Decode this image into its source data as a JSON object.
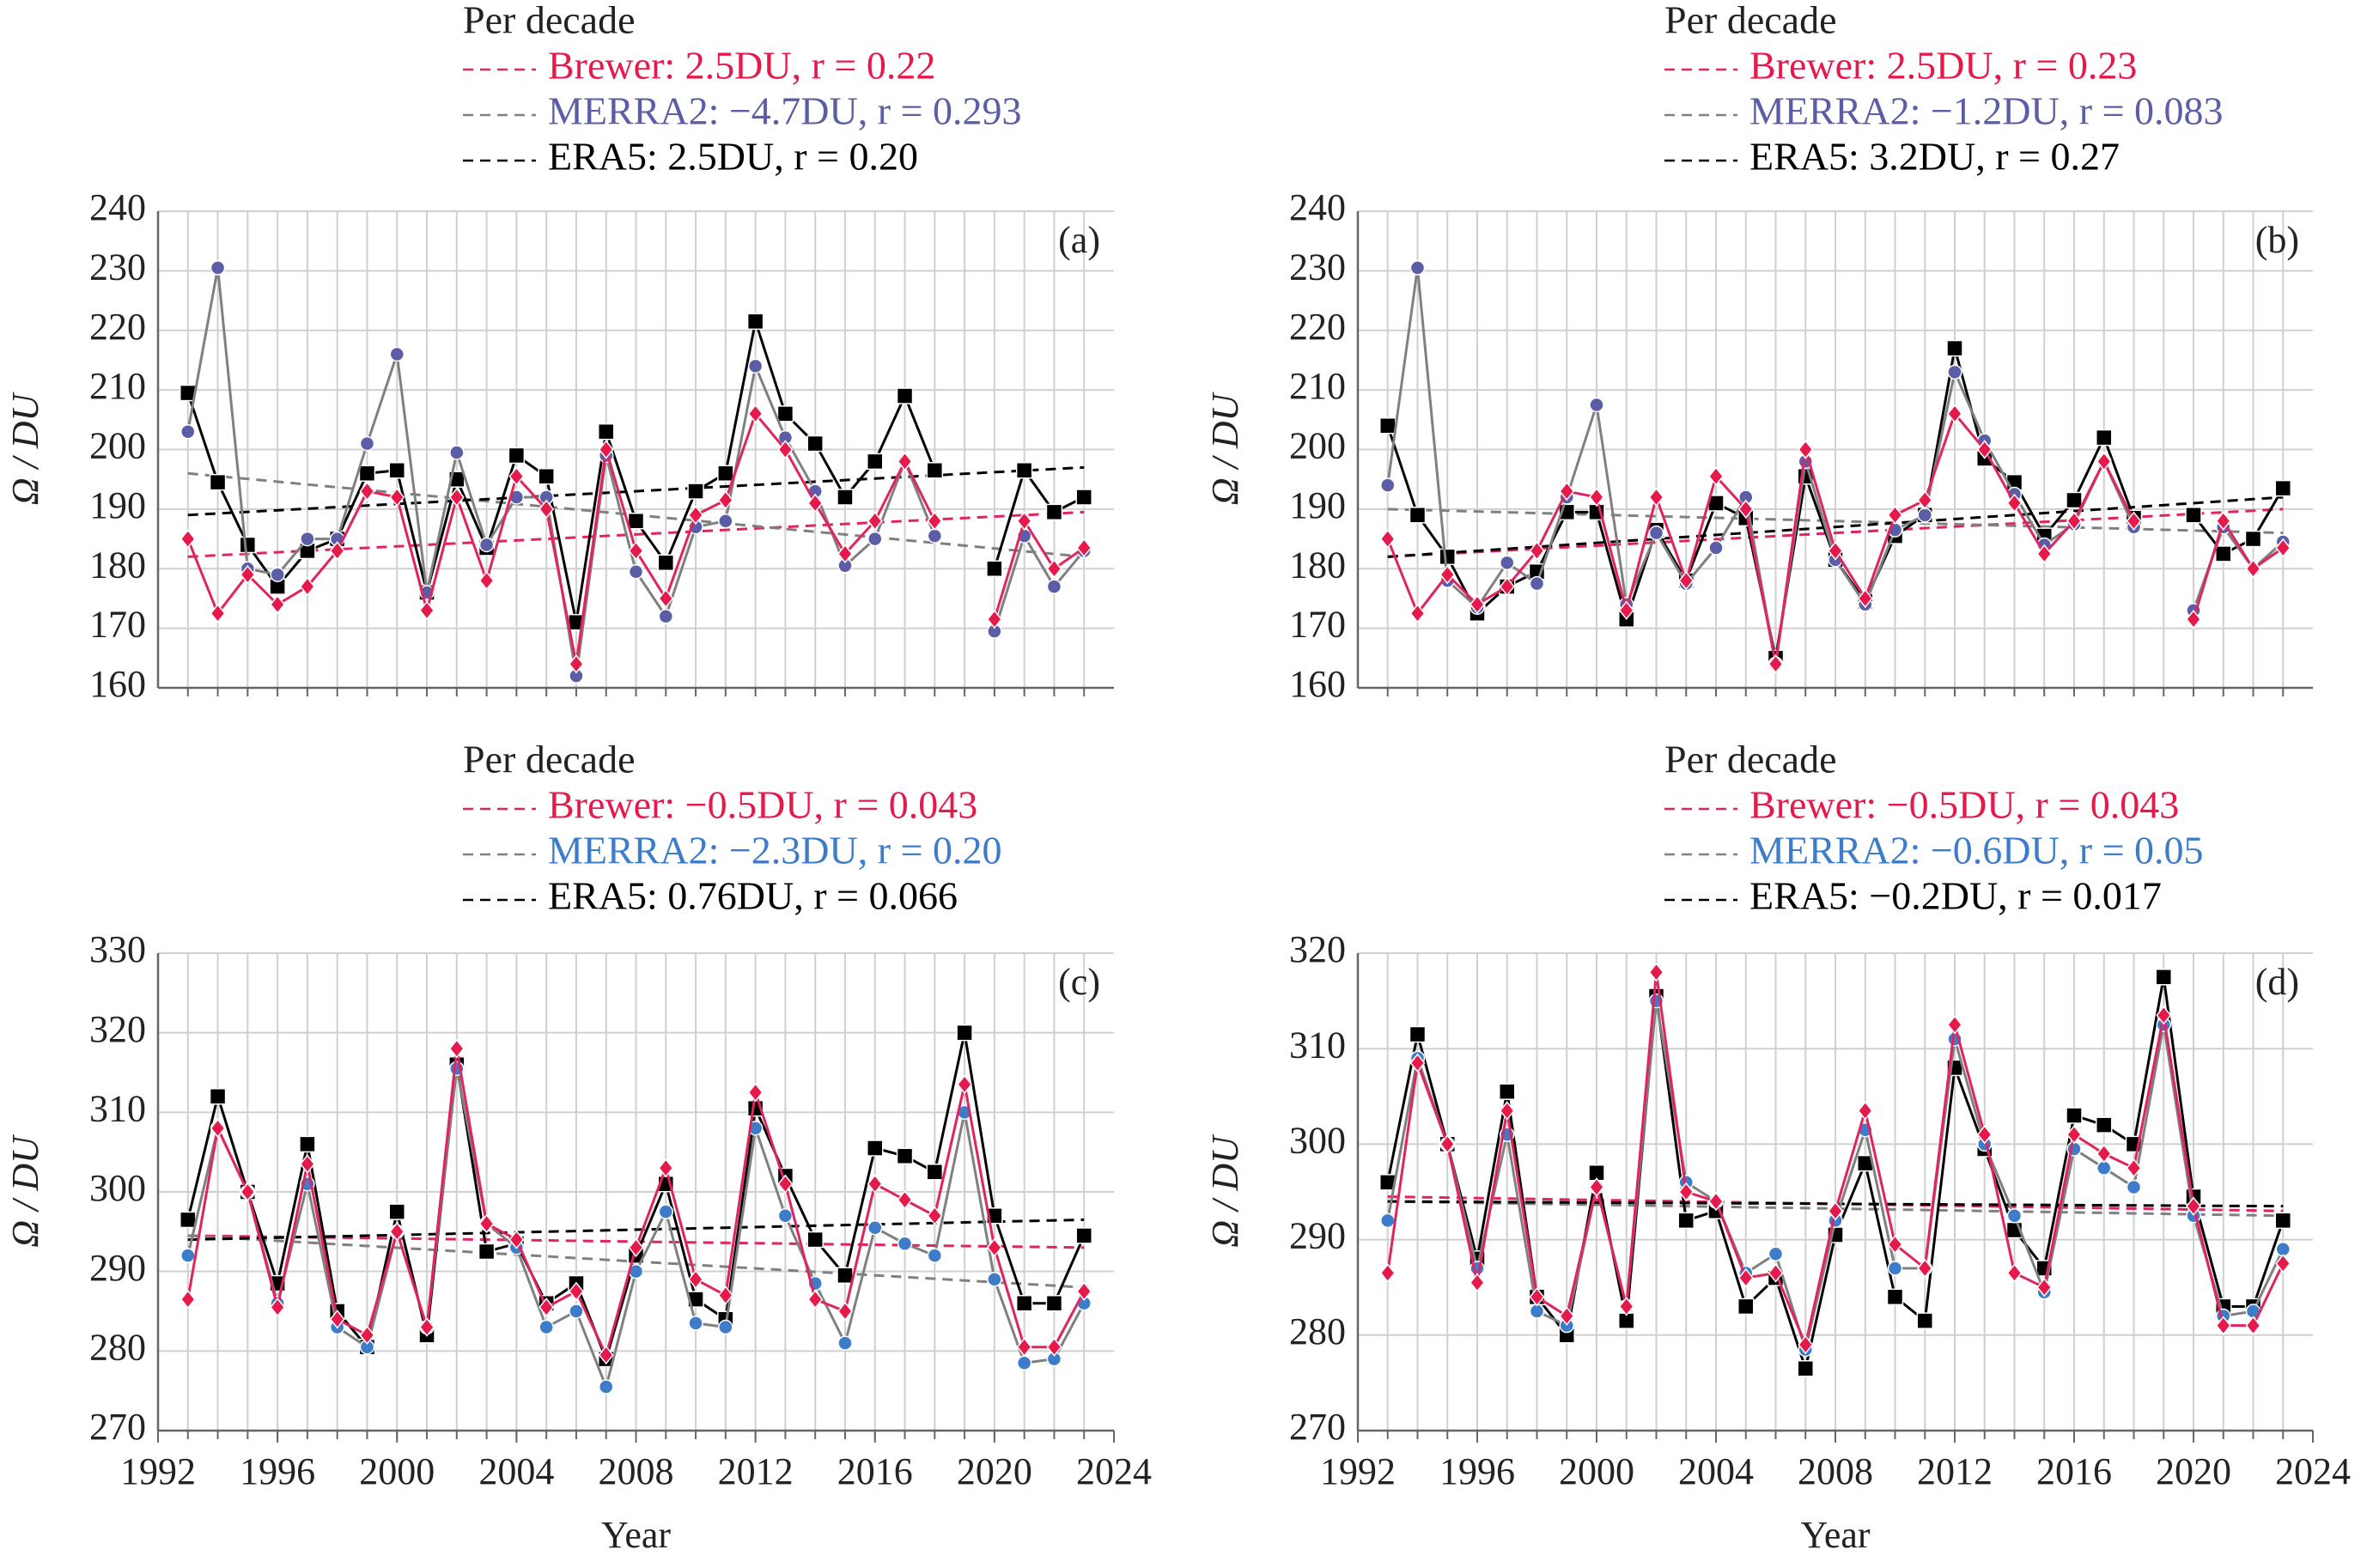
{
  "chart_data": [
    {
      "type": "line",
      "label": "(a)",
      "legend_title": "Per decade",
      "ylabel": "Ω / DU",
      "grid": true,
      "x": [
        1993,
        1994,
        1995,
        1996,
        1997,
        1998,
        1999,
        2000,
        2001,
        2002,
        2003,
        2004,
        2005,
        2006,
        2007,
        2008,
        2009,
        2010,
        2011,
        2012,
        2013,
        2014,
        2015,
        2016,
        2017,
        2018,
        2019,
        2020,
        2021,
        2022,
        2023
      ],
      "xlim": [
        1992,
        2024
      ],
      "ylim": [
        160,
        240
      ],
      "yticks": [
        160,
        170,
        180,
        190,
        200,
        210,
        220,
        230,
        240
      ],
      "series": [
        {
          "name": "Brewer: 2.5DU, r = 0.22",
          "color": "#e6194b",
          "line_color": "#e0245e",
          "marker": "diamond",
          "trend": [
            182,
            189.5
          ],
          "values": [
            185,
            172.5,
            179,
            174,
            177,
            183,
            193,
            192,
            173,
            192,
            178,
            195.5,
            190,
            164,
            200,
            183,
            175,
            189,
            191.5,
            206,
            200,
            191,
            182.5,
            188,
            198,
            188,
            null,
            171.5,
            188,
            180,
            183.5
          ]
        },
        {
          "name": "MERRA2: −4.7DU, r = 0.293",
          "color": "#5b5ea6",
          "line_color": "#808080",
          "marker": "circle",
          "trend": [
            196,
            182
          ],
          "values": [
            203,
            230.5,
            180,
            179,
            185,
            185,
            201,
            216,
            176,
            199.5,
            184,
            192,
            192,
            162,
            199,
            179.5,
            172,
            187,
            188,
            214,
            202,
            193,
            180.5,
            185,
            198,
            185.5,
            null,
            169.5,
            185.5,
            177,
            183
          ]
        },
        {
          "name": "ERA5: 2.5DU, r = 0.20",
          "color": "#000000",
          "line_color": "#000000",
          "marker": "square",
          "trend": [
            189,
            197
          ],
          "values": [
            209.5,
            194.5,
            184,
            177,
            183,
            185,
            196,
            196.5,
            176,
            195,
            183.5,
            199,
            195.5,
            171,
            203,
            188,
            181,
            193,
            196,
            221.5,
            206,
            201,
            192,
            198,
            209,
            196.5,
            null,
            180,
            196.5,
            189.5,
            192
          ]
        }
      ]
    },
    {
      "type": "line",
      "label": "(b)",
      "legend_title": "Per decade",
      "ylabel": "Ω / DU",
      "grid": true,
      "x": [
        1993,
        1994,
        1995,
        1996,
        1997,
        1998,
        1999,
        2000,
        2001,
        2002,
        2003,
        2004,
        2005,
        2006,
        2007,
        2008,
        2009,
        2010,
        2011,
        2012,
        2013,
        2014,
        2015,
        2016,
        2017,
        2018,
        2019,
        2020,
        2021,
        2022,
        2023
      ],
      "xlim": [
        1992,
        2024
      ],
      "ylim": [
        160,
        240
      ],
      "yticks": [
        160,
        170,
        180,
        190,
        200,
        210,
        220,
        230,
        240
      ],
      "series": [
        {
          "name": "Brewer: 2.5DU, r = 0.23",
          "color": "#e6194b",
          "line_color": "#e0245e",
          "marker": "diamond",
          "trend": [
            182,
            190
          ],
          "values": [
            185,
            172.5,
            179,
            174,
            177,
            183,
            193,
            192,
            173,
            192,
            178,
            195.5,
            190,
            164,
            200,
            183,
            175,
            189,
            191.5,
            206,
            200,
            191,
            182.5,
            188,
            198,
            188,
            null,
            171.5,
            188,
            180,
            183.5
          ]
        },
        {
          "name": "MERRA2: −1.2DU, r = 0.083",
          "color": "#5b5ea6",
          "line_color": "#808080",
          "marker": "circle",
          "trend": [
            190,
            186
          ],
          "values": [
            194,
            230.5,
            178,
            173.5,
            181,
            177.5,
            192,
            207.5,
            174,
            186,
            177.5,
            183.5,
            192,
            164,
            198,
            181.5,
            174,
            186.5,
            189,
            213,
            201.5,
            192.5,
            184,
            187.5,
            198,
            187,
            null,
            173,
            187,
            180,
            184.5
          ]
        },
        {
          "name": "ERA5: 3.2DU, r = 0.27",
          "color": "#000000",
          "line_color": "#000000",
          "marker": "square",
          "trend": [
            182,
            192
          ],
          "values": [
            204,
            189,
            182,
            172.5,
            177,
            179.5,
            189.5,
            189.5,
            171.5,
            186.5,
            178,
            191,
            188.5,
            165,
            195.5,
            181.5,
            174.5,
            185.5,
            189,
            217,
            198.5,
            194.5,
            185.5,
            191.5,
            202,
            188.5,
            null,
            189,
            182.5,
            185,
            193.5
          ]
        }
      ]
    },
    {
      "type": "line",
      "label": "(c)",
      "legend_title": "Per decade",
      "ylabel": "Ω / DU",
      "xlabel": "Year",
      "grid": true,
      "x": [
        1993,
        1994,
        1995,
        1996,
        1997,
        1998,
        1999,
        2000,
        2001,
        2002,
        2003,
        2004,
        2005,
        2006,
        2007,
        2008,
        2009,
        2010,
        2011,
        2012,
        2013,
        2014,
        2015,
        2016,
        2017,
        2018,
        2019,
        2020,
        2021,
        2022,
        2023
      ],
      "xlim": [
        1992,
        2024
      ],
      "xticks": [
        1992,
        1996,
        2000,
        2004,
        2008,
        2012,
        2016,
        2020,
        2024
      ],
      "ylim": [
        270,
        330
      ],
      "yticks": [
        270,
        280,
        290,
        300,
        310,
        320,
        330
      ],
      "series": [
        {
          "name": "Brewer: −0.5DU, r = 0.043",
          "color": "#e6194b",
          "line_color": "#e0245e",
          "marker": "diamond",
          "trend": [
            294.5,
            293
          ],
          "values": [
            286.5,
            308,
            300,
            285.5,
            303.5,
            284,
            282,
            295,
            283,
            318,
            296,
            294,
            285.5,
            287.5,
            279.5,
            293,
            303,
            289,
            287,
            312.5,
            301,
            286.5,
            285,
            301,
            299,
            297,
            313.5,
            293,
            280.5,
            280.5,
            287.5
          ]
        },
        {
          "name": "MERRA2: −2.3DU, r = 0.20",
          "color": "#3d7cc9",
          "line_color": "#808080",
          "marker": "circle",
          "trend": [
            294.5,
            288
          ],
          "values": [
            292,
            308,
            300,
            286,
            301,
            283,
            280.5,
            295,
            283,
            315.5,
            296,
            293,
            283,
            285,
            275.5,
            290,
            297.5,
            283.5,
            283,
            308,
            297,
            288.5,
            281,
            295.5,
            293.5,
            292,
            310,
            289,
            278.5,
            279,
            286
          ]
        },
        {
          "name": "ERA5: 0.76DU, r = 0.066",
          "color": "#000000",
          "line_color": "#000000",
          "marker": "square",
          "trend": [
            294,
            296.5
          ],
          "values": [
            296.5,
            312,
            300,
            288.5,
            306,
            285,
            280.5,
            297.5,
            282,
            316,
            292.5,
            293.5,
            286,
            288.5,
            279,
            292,
            301,
            286.5,
            284,
            310.5,
            302,
            294,
            289.5,
            305.5,
            304.5,
            302.5,
            320,
            297,
            286,
            286,
            294.5
          ]
        }
      ]
    },
    {
      "type": "line",
      "label": "(d)",
      "legend_title": "Per decade",
      "ylabel": "Ω / DU",
      "xlabel": "Year",
      "grid": true,
      "x": [
        1993,
        1994,
        1995,
        1996,
        1997,
        1998,
        1999,
        2000,
        2001,
        2002,
        2003,
        2004,
        2005,
        2006,
        2007,
        2008,
        2009,
        2010,
        2011,
        2012,
        2013,
        2014,
        2015,
        2016,
        2017,
        2018,
        2019,
        2020,
        2021,
        2022,
        2023
      ],
      "xlim": [
        1992,
        2024
      ],
      "xticks": [
        1992,
        1996,
        2000,
        2004,
        2008,
        2012,
        2016,
        2020,
        2024
      ],
      "ylim": [
        270,
        320
      ],
      "yticks": [
        270,
        280,
        290,
        300,
        310,
        320
      ],
      "series": [
        {
          "name": "Brewer: −0.5DU, r = 0.043",
          "color": "#e6194b",
          "line_color": "#e0245e",
          "marker": "diamond",
          "trend": [
            294.5,
            293
          ],
          "values": [
            286.5,
            308.5,
            300,
            285.5,
            303.5,
            284,
            282,
            295.5,
            283,
            318,
            295,
            294,
            286,
            286.5,
            279,
            293,
            303.5,
            289.5,
            287,
            312.5,
            301,
            286.5,
            285,
            301,
            299,
            297.5,
            313.5,
            293.5,
            281,
            281,
            287.5
          ]
        },
        {
          "name": "MERRA2: −0.6DU, r = 0.05",
          "color": "#3d7cc9",
          "line_color": "#808080",
          "marker": "circle",
          "trend": [
            294,
            292.5
          ],
          "values": [
            292,
            309,
            300,
            287,
            301,
            282.5,
            281,
            295.5,
            283,
            315,
            296,
            294,
            286.5,
            288.5,
            278.5,
            292,
            301.5,
            287,
            287,
            311,
            300,
            292.5,
            284.5,
            299.5,
            297.5,
            295.5,
            312.5,
            292.5,
            282,
            282.5,
            289
          ]
        },
        {
          "name": "ERA5: −0.2DU, r = 0.017",
          "color": "#000000",
          "line_color": "#000000",
          "marker": "square",
          "trend": [
            294,
            293.5
          ],
          "values": [
            296,
            311.5,
            300,
            288,
            305.5,
            284,
            280,
            297,
            281.5,
            315.5,
            292,
            293,
            283,
            286,
            276.5,
            290.5,
            298,
            284,
            281.5,
            308,
            299.5,
            291,
            287,
            303,
            302,
            300,
            317.5,
            294.5,
            283,
            283,
            292
          ]
        }
      ]
    }
  ]
}
